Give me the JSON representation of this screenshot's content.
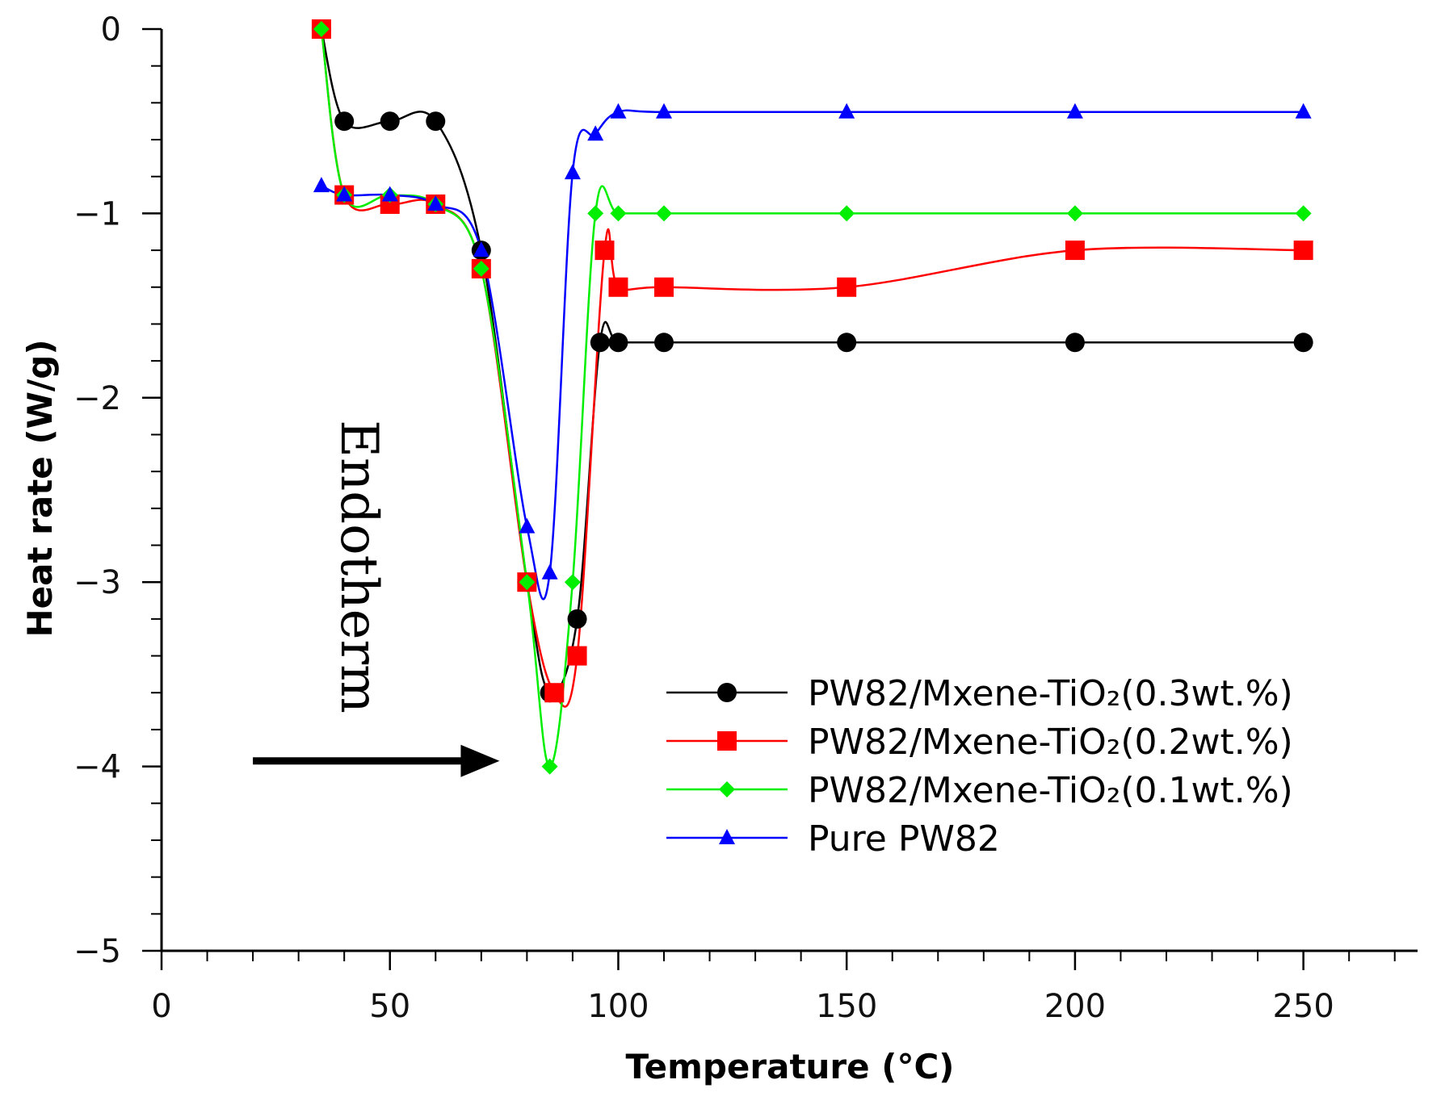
{
  "chart_data": {
    "type": "line",
    "title": "",
    "xlabel": "Temperature (°C)",
    "ylabel": "Heat rate (W/g)",
    "xlim": [
      0,
      275
    ],
    "ylim": [
      -5,
      0
    ],
    "xticks": [
      0,
      50,
      100,
      150,
      200,
      250
    ],
    "yticks": [
      0,
      -1,
      -2,
      -3,
      -4,
      -5
    ],
    "xtick_labels": [
      "0",
      "50",
      "100",
      "150",
      "200",
      "250"
    ],
    "ytick_labels": [
      "0",
      "−1",
      "−2",
      "−3",
      "−4",
      "−5"
    ],
    "x_minor_step": 10,
    "y_minor_step": 0.2,
    "grid": false,
    "legend_position": "bottom-right",
    "annotation": {
      "text": "Endotherm",
      "arrow_direction": "right",
      "arrow_from": [
        20,
        -3.97
      ],
      "arrow_to": [
        74,
        -3.97
      ]
    },
    "series": [
      {
        "name": "PW82/Mxene-TiO₂(0.3wt.%)",
        "color": "#000000",
        "marker": "circle",
        "x": [
          35,
          40,
          50,
          60,
          70,
          80,
          85,
          91,
          96,
          100,
          110,
          150,
          200,
          250
        ],
        "y": [
          0,
          -0.5,
          -0.5,
          -0.5,
          -1.2,
          -3.0,
          -3.6,
          -3.2,
          -1.7,
          -1.7,
          -1.7,
          -1.7,
          -1.7,
          -1.7
        ]
      },
      {
        "name": "PW82/Mxene-TiO₂(0.2wt.%)",
        "color": "#ff0000",
        "marker": "square",
        "x": [
          35,
          40,
          50,
          60,
          70,
          80,
          86,
          91,
          97,
          100,
          110,
          150,
          200,
          250
        ],
        "y": [
          0,
          -0.9,
          -0.95,
          -0.95,
          -1.3,
          -3.0,
          -3.6,
          -3.4,
          -1.2,
          -1.4,
          -1.4,
          -1.4,
          -1.2,
          -1.2
        ]
      },
      {
        "name": "PW82/Mxene-TiO₂(0.1wt.%)",
        "color": "#00ee00",
        "marker": "diamond",
        "x": [
          35,
          40,
          50,
          60,
          70,
          80,
          85,
          90,
          95,
          100,
          110,
          150,
          200,
          250
        ],
        "y": [
          0,
          -0.9,
          -0.9,
          -0.95,
          -1.3,
          -3.0,
          -4.0,
          -3.0,
          -1.0,
          -1.0,
          -1.0,
          -1.0,
          -1.0,
          -1.0
        ]
      },
      {
        "name": "Pure PW82",
        "color": "#0000ff",
        "marker": "triangle",
        "x": [
          35,
          40,
          50,
          60,
          70,
          80,
          85,
          90,
          95,
          100,
          110,
          150,
          200,
          250
        ],
        "y": [
          -0.85,
          -0.9,
          -0.9,
          -0.95,
          -1.2,
          -2.7,
          -2.95,
          -0.78,
          -0.57,
          -0.45,
          -0.45,
          -0.45,
          -0.45,
          -0.45
        ]
      }
    ]
  }
}
